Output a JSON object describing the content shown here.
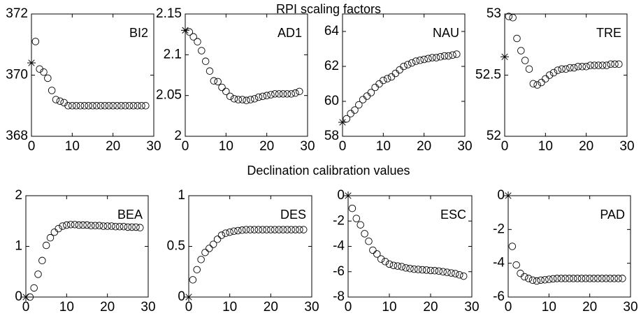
{
  "headings": [
    "RPI scaling factors",
    "Declination calibration values"
  ],
  "chart_data": [
    {
      "type": "scatter",
      "title": "BI2",
      "xlim": [
        0,
        30
      ],
      "xticks": [
        0,
        10,
        20,
        30
      ],
      "ylim": [
        368,
        372
      ],
      "yticks": [
        368,
        370,
        372
      ],
      "series": [
        {
          "marker": "star",
          "x": [
            0
          ],
          "values": [
            370.4
          ]
        },
        {
          "marker": "circle",
          "x": [
            1,
            2,
            3,
            4,
            5,
            6,
            7,
            8,
            9,
            10,
            11,
            12,
            13,
            14,
            15,
            16,
            17,
            18,
            19,
            20,
            21,
            22,
            23,
            24,
            25,
            26,
            27,
            28
          ],
          "values": [
            371.1,
            370.2,
            370.1,
            369.9,
            369.5,
            369.2,
            369.15,
            369.1,
            369.0,
            369.0,
            369.0,
            369.0,
            369.0,
            369.0,
            369.0,
            369.0,
            369.0,
            369.0,
            369.0,
            369.0,
            369.0,
            369.0,
            369.0,
            369.0,
            369.0,
            369.0,
            369.0,
            369.0
          ]
        }
      ]
    },
    {
      "type": "scatter",
      "title": "AD1",
      "xlim": [
        0,
        30
      ],
      "xticks": [
        0,
        10,
        20,
        30
      ],
      "ylim": [
        2,
        2.15
      ],
      "yticks": [
        2,
        2.05,
        2.1,
        2.15
      ],
      "series": [
        {
          "marker": "star",
          "x": [
            0
          ],
          "values": [
            2.13
          ]
        },
        {
          "marker": "circle",
          "x": [
            1,
            2,
            3,
            4,
            5,
            6,
            7,
            8,
            9,
            10,
            11,
            12,
            13,
            14,
            15,
            16,
            17,
            18,
            19,
            20,
            21,
            22,
            23,
            24,
            25,
            26,
            27,
            28
          ],
          "values": [
            2.128,
            2.122,
            2.116,
            2.105,
            2.092,
            2.08,
            2.068,
            2.067,
            2.06,
            2.055,
            2.049,
            2.046,
            2.045,
            2.045,
            2.044,
            2.045,
            2.046,
            2.048,
            2.049,
            2.05,
            2.051,
            2.052,
            2.052,
            2.052,
            2.052,
            2.052,
            2.053,
            2.055
          ]
        }
      ]
    },
    {
      "type": "scatter",
      "title": "NAU",
      "xlim": [
        0,
        30
      ],
      "xticks": [
        0,
        10,
        20,
        30
      ],
      "ylim": [
        58,
        65
      ],
      "yticks": [
        58,
        60,
        62,
        64
      ],
      "series": [
        {
          "marker": "star",
          "x": [
            0
          ],
          "values": [
            58.8
          ]
        },
        {
          "marker": "circle",
          "x": [
            1,
            2,
            3,
            4,
            5,
            6,
            7,
            8,
            9,
            10,
            11,
            12,
            13,
            14,
            15,
            16,
            17,
            18,
            19,
            20,
            21,
            22,
            23,
            24,
            25,
            26,
            27,
            28
          ],
          "values": [
            59.0,
            59.3,
            59.5,
            59.8,
            60.1,
            60.3,
            60.5,
            60.8,
            61.0,
            61.2,
            61.3,
            61.4,
            61.6,
            61.8,
            62.0,
            62.1,
            62.2,
            62.3,
            62.35,
            62.4,
            62.45,
            62.5,
            62.5,
            62.55,
            62.6,
            62.6,
            62.65,
            62.7
          ]
        }
      ]
    },
    {
      "type": "scatter",
      "title": "TRE",
      "xlim": [
        0,
        30
      ],
      "xticks": [
        0,
        10,
        20,
        30
      ],
      "ylim": [
        52,
        53
      ],
      "yticks": [
        52,
        52.5,
        53
      ],
      "series": [
        {
          "marker": "star",
          "x": [
            0
          ],
          "values": [
            52.65
          ]
        },
        {
          "marker": "circle",
          "x": [
            1,
            2,
            3,
            4,
            5,
            6,
            7,
            8,
            9,
            10,
            11,
            12,
            13,
            14,
            15,
            16,
            17,
            18,
            19,
            20,
            21,
            22,
            23,
            24,
            25,
            26,
            27,
            28
          ],
          "values": [
            52.98,
            52.97,
            52.8,
            52.7,
            52.62,
            52.55,
            52.43,
            52.42,
            52.44,
            52.47,
            52.5,
            52.52,
            52.54,
            52.55,
            52.55,
            52.56,
            52.56,
            52.57,
            52.57,
            52.57,
            52.58,
            52.58,
            52.58,
            52.58,
            52.58,
            52.59,
            52.59,
            52.59
          ]
        }
      ]
    },
    {
      "type": "scatter",
      "title": "BEA",
      "xlim": [
        0,
        30
      ],
      "xticks": [
        0,
        10,
        20,
        30
      ],
      "ylim": [
        0,
        2
      ],
      "yticks": [
        0,
        1,
        2
      ],
      "series": [
        {
          "marker": "star",
          "x": [
            0
          ],
          "values": [
            0
          ]
        },
        {
          "marker": "circle",
          "x": [
            1,
            2,
            3,
            4,
            5,
            6,
            7,
            8,
            9,
            10,
            11,
            12,
            13,
            14,
            15,
            16,
            17,
            18,
            19,
            20,
            21,
            22,
            23,
            24,
            25,
            26,
            27,
            28
          ],
          "values": [
            0.0,
            0.18,
            0.45,
            0.72,
            1.02,
            1.17,
            1.28,
            1.35,
            1.4,
            1.42,
            1.43,
            1.43,
            1.42,
            1.42,
            1.42,
            1.41,
            1.41,
            1.41,
            1.4,
            1.4,
            1.4,
            1.39,
            1.39,
            1.39,
            1.38,
            1.38,
            1.38,
            1.37
          ]
        }
      ]
    },
    {
      "type": "scatter",
      "title": "DES",
      "xlim": [
        0,
        30
      ],
      "xticks": [
        0,
        10,
        20,
        30
      ],
      "ylim": [
        0,
        1
      ],
      "yticks": [
        0,
        0.5,
        1
      ],
      "series": [
        {
          "marker": "star",
          "x": [
            0
          ],
          "values": [
            0
          ]
        },
        {
          "marker": "circle",
          "x": [
            1,
            2,
            3,
            4,
            5,
            6,
            7,
            8,
            9,
            10,
            11,
            12,
            13,
            14,
            15,
            16,
            17,
            18,
            19,
            20,
            21,
            22,
            23,
            24,
            25,
            26,
            27,
            28
          ],
          "values": [
            0.17,
            0.27,
            0.37,
            0.44,
            0.48,
            0.52,
            0.57,
            0.61,
            0.63,
            0.64,
            0.65,
            0.655,
            0.66,
            0.665,
            0.665,
            0.665,
            0.665,
            0.665,
            0.665,
            0.665,
            0.665,
            0.665,
            0.665,
            0.665,
            0.665,
            0.665,
            0.665,
            0.665
          ]
        }
      ]
    },
    {
      "type": "scatter",
      "title": "ESC",
      "xlim": [
        0,
        30
      ],
      "xticks": [
        0,
        10,
        20,
        30
      ],
      "ylim": [
        -8,
        0
      ],
      "yticks": [
        -8,
        -6,
        -4,
        -2,
        0
      ],
      "series": [
        {
          "marker": "star",
          "x": [
            0
          ],
          "values": [
            0
          ]
        },
        {
          "marker": "circle",
          "x": [
            1,
            2,
            3,
            4,
            5,
            6,
            7,
            8,
            9,
            10,
            11,
            12,
            13,
            14,
            15,
            16,
            17,
            18,
            19,
            20,
            21,
            22,
            23,
            24,
            25,
            26,
            27,
            28
          ],
          "values": [
            -1.0,
            -1.8,
            -2.3,
            -3.0,
            -3.6,
            -4.3,
            -4.6,
            -5.0,
            -5.2,
            -5.4,
            -5.5,
            -5.55,
            -5.6,
            -5.7,
            -5.75,
            -5.8,
            -5.82,
            -5.85,
            -5.87,
            -5.9,
            -5.92,
            -5.95,
            -6.0,
            -6.05,
            -6.1,
            -6.15,
            -6.25,
            -6.35
          ]
        }
      ]
    },
    {
      "type": "scatter",
      "title": "PAD",
      "xlim": [
        0,
        30
      ],
      "xticks": [
        0,
        10,
        20,
        30
      ],
      "ylim": [
        -6,
        0
      ],
      "yticks": [
        -6,
        -4,
        -2,
        0
      ],
      "series": [
        {
          "marker": "star",
          "x": [
            0
          ],
          "values": [
            0
          ]
        },
        {
          "marker": "circle",
          "x": [
            1,
            2,
            3,
            4,
            5,
            6,
            7,
            8,
            9,
            10,
            11,
            12,
            13,
            14,
            15,
            16,
            17,
            18,
            19,
            20,
            21,
            22,
            23,
            24,
            25,
            26,
            27,
            28
          ],
          "values": [
            -3.0,
            -4.1,
            -4.6,
            -4.8,
            -4.9,
            -5.0,
            -5.05,
            -5.0,
            -4.98,
            -4.95,
            -4.92,
            -4.9,
            -4.9,
            -4.9,
            -4.9,
            -4.9,
            -4.9,
            -4.9,
            -4.9,
            -4.9,
            -4.9,
            -4.9,
            -4.9,
            -4.9,
            -4.9,
            -4.9,
            -4.9,
            -4.9
          ]
        }
      ]
    }
  ]
}
